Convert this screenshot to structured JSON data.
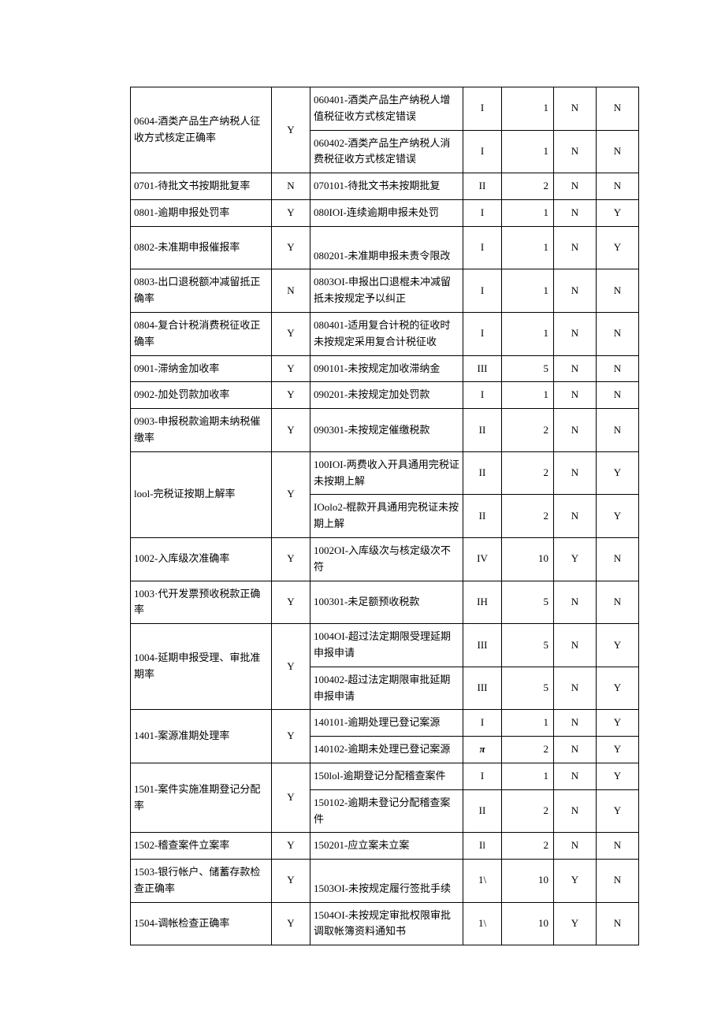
{
  "table": {
    "rows": [
      {
        "c1": "0604-酒类产品生产纳税人征收方式核定正确率",
        "c1_rowspan": 2,
        "c2": "Y",
        "c2_rowspan": 2,
        "c3": "060401-酒类产品生产纳税人增值税征收方式核定错误",
        "c4": "I",
        "c5": "1",
        "c6": "N",
        "c7": "N"
      },
      {
        "c3": "060402-酒类产品生产纳税人消费税征收方式核定错误",
        "c4": "I",
        "c5": "1",
        "c6": "N",
        "c7": "N"
      },
      {
        "c1": "0701-待批文书按期批复率",
        "c2": "N",
        "c3": "070101-待批文书未按期批复",
        "c4": "II",
        "c5": "2",
        "c6": "N",
        "c7": "N"
      },
      {
        "c1": "0801-逾期申报处罚率",
        "c2": "Y",
        "c3": "080IOI-连续逾期申报未处罚",
        "c4": "I",
        "c5": "1",
        "c6": "N",
        "c7": "Y"
      },
      {
        "c1": "0802-未准期申报催报率",
        "c2": "Y",
        "c3": "\n080201-未准期申报未责令限改",
        "c4": "I",
        "c5": "1",
        "c6": "N",
        "c7": "Y"
      },
      {
        "c1": "0803-出口退税额冲减留抵正确率",
        "c2": "N",
        "c3": "0803OI-申报出口退棍未冲减留抵未按规定予以纠正",
        "c4": "I",
        "c5": "1",
        "c6": "N",
        "c7": "N"
      },
      {
        "c1": "0804-复合计税消费税征收正确率",
        "c2": "Y",
        "c3": "080401-适用复合计税的征收时未按规定采用复合计税征收",
        "c4": "I",
        "c5": "1",
        "c6": "N",
        "c7": "N"
      },
      {
        "c1": "0901-滞纳金加收率",
        "c2": "Y",
        "c3": "090101-未按规定加收滞纳金",
        "c4": "III",
        "c5": "5",
        "c6": "N",
        "c7": "N"
      },
      {
        "c1": "0902-加处罚款加收率",
        "c2": "Y",
        "c3": "090201-未按规定加处罚款",
        "c4": "I",
        "c5": "1",
        "c6": "N",
        "c7": "N"
      },
      {
        "c1": "0903-申报税款逾期未纳税催缴率",
        "c2": "Y",
        "c3": "090301-未按规定催缴税款",
        "c4": "II",
        "c5": "2",
        "c6": "N",
        "c7": "N"
      },
      {
        "c1": "lool-完税证按期上解率",
        "c1_rowspan": 2,
        "c2": "Y",
        "c2_rowspan": 2,
        "c3": "100IOI-两费收入开具通用完税证未按期上解",
        "c4": "II",
        "c5": "2",
        "c6": "N",
        "c7": "Y"
      },
      {
        "c3": "IOolo2-棍款开具通用完税证未按期上解",
        "c4": "II",
        "c5": "2",
        "c6": "N",
        "c7": "Y"
      },
      {
        "c1": "1002-入库级次准确率",
        "c2": "Y",
        "c3": "1002OI-入库级次与核定级次不符",
        "c4": "IV",
        "c5": "10",
        "c6": "Y",
        "c7": "N"
      },
      {
        "c1": "1003·代开发票预收税款正确率",
        "c2": "Y",
        "c3": "100301-未足额预收税款",
        "c4": "IH",
        "c5": "5",
        "c6": "N",
        "c7": "N"
      },
      {
        "c1": "1004-延期申报受理、审批准期率",
        "c1_rowspan": 2,
        "c2": "Y",
        "c2_rowspan": 2,
        "c3": "1004OI-超过法定期限受理延期申报申请",
        "c4": "III",
        "c5": "5",
        "c6": "N",
        "c7": "Y"
      },
      {
        "c3": "100402-超过法定期限审批延期申报申请",
        "c4": "III",
        "c5": "5",
        "c6": "N",
        "c7": "Y"
      },
      {
        "c1": "1401-案源准期处理率",
        "c1_rowspan": 2,
        "c2": "Y",
        "c2_rowspan": 2,
        "c3": "140101-逾期处理已登记案源",
        "c4": "I",
        "c5": "1",
        "c6": "N",
        "c7": "Y"
      },
      {
        "c3": "140102-逾期未处理已登记案源",
        "c4": "π",
        "c4_class": "pi",
        "c5": "2",
        "c6": "N",
        "c7": "Y"
      },
      {
        "c1": "1501-案件实施准期登记分配率",
        "c1_rowspan": 2,
        "c2": "Y",
        "c2_rowspan": 2,
        "c3": "150lol-逾期登记分配稽查案件",
        "c4": "I",
        "c5": "1",
        "c6": "N",
        "c7": "Y"
      },
      {
        "c3": "150102-逾期未登记分配稽查案件",
        "c4": "II",
        "c5": "2",
        "c6": "N",
        "c7": "Y"
      },
      {
        "c1": "1502-稽查案件立案率",
        "c2": "Y",
        "c3": "150201-应立案未立案",
        "c4": "Il",
        "c5": "2",
        "c6": "N",
        "c7": "N"
      },
      {
        "c1": "1503-银行帐户、储蓄存款检查正确率",
        "c2": "Y",
        "c3": "\n1503OI-未按规定履行签批手续",
        "c4": "1\\",
        "c5": "10",
        "c6": "Y",
        "c7": "N"
      },
      {
        "c1": "1504-调帐检查正确率",
        "c2": "Y",
        "c3": "1504OI-未按规定审批权限审批调取帐簿资料通知书",
        "c4": "1\\",
        "c5": "10",
        "c6": "Y",
        "c7": "N"
      }
    ]
  }
}
